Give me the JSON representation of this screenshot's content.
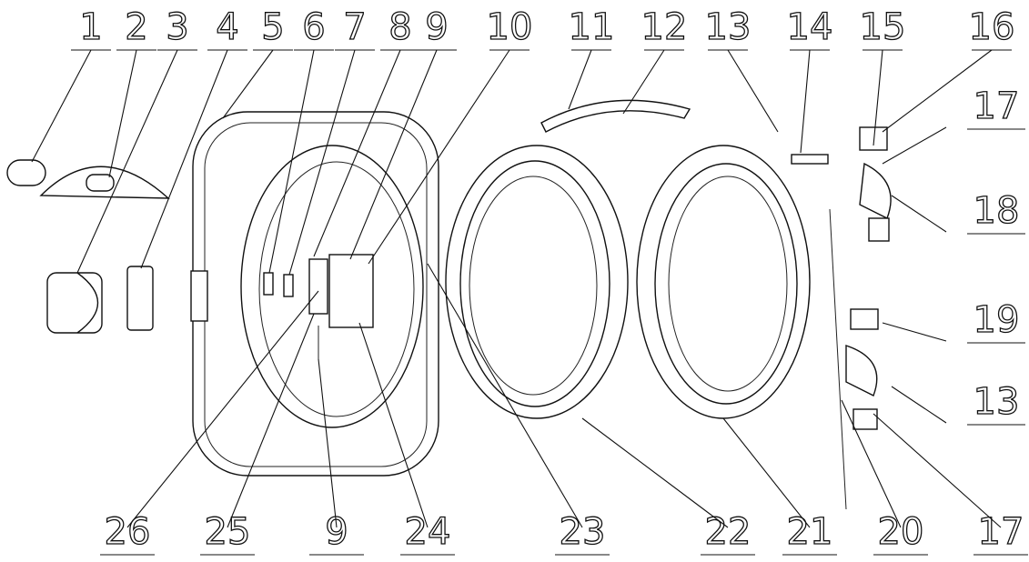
{
  "callouts_top": [
    "1",
    "2",
    "3",
    "4",
    "5",
    "6",
    "7",
    "8",
    "9",
    "10",
    "11",
    "12",
    "13",
    "14",
    "15",
    "16"
  ],
  "callouts_right": [
    "17",
    "18",
    "19",
    "13"
  ],
  "callouts_bottom": [
    "26",
    "25",
    "9",
    "24",
    "23",
    "22",
    "21",
    "20",
    "17"
  ]
}
